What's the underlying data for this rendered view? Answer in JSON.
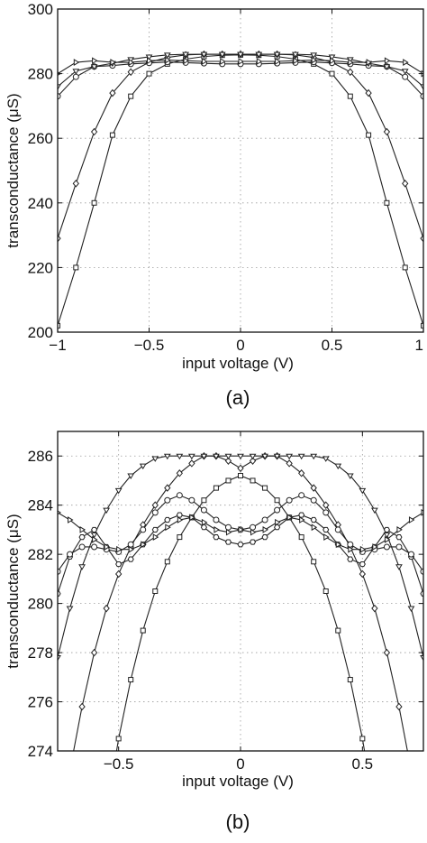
{
  "chart_data": [
    {
      "type": "line",
      "panel_label": "(a)",
      "xlabel": "input voltage (V)",
      "ylabel": "transconductance (μS)",
      "xlim": [
        -1,
        1
      ],
      "ylim": [
        200,
        300
      ],
      "xticks": [
        -1,
        -0.5,
        0,
        0.5,
        1
      ],
      "xtick_labels": [
        "−1",
        "−0.5",
        "0",
        "0.5",
        "1"
      ],
      "yticks": [
        200,
        220,
        240,
        260,
        280,
        300
      ],
      "ytick_labels": [
        "200",
        "220",
        "240",
        "260",
        "280",
        "300"
      ],
      "grid": true,
      "series": [
        {
          "marker": "square",
          "x": [
            -1.0,
            -0.9,
            -0.8,
            -0.7,
            -0.6,
            -0.5,
            -0.4,
            -0.3,
            -0.2,
            -0.1,
            0.0,
            0.1,
            0.2,
            0.3,
            0.4,
            0.5,
            0.6,
            0.7,
            0.8,
            0.9,
            1.0
          ],
          "values": [
            202,
            220,
            240,
            261,
            273,
            280,
            283,
            284.5,
            285.3,
            285.7,
            285.8,
            285.7,
            285.3,
            284.5,
            283,
            280,
            273,
            261,
            240,
            220,
            202
          ]
        },
        {
          "marker": "diamond",
          "x": [
            -1.0,
            -0.9,
            -0.8,
            -0.7,
            -0.6,
            -0.5,
            -0.4,
            -0.3,
            -0.2,
            -0.1,
            0.0,
            0.1,
            0.2,
            0.3,
            0.4,
            0.5,
            0.6,
            0.7,
            0.8,
            0.9,
            1.0
          ],
          "values": [
            229,
            246,
            262,
            274,
            280.5,
            283.5,
            285,
            285.8,
            286,
            286,
            286,
            286,
            286,
            285.8,
            285,
            283.5,
            280.5,
            274,
            262,
            246,
            229
          ]
        },
        {
          "marker": "circle",
          "x": [
            -1.0,
            -0.9,
            -0.8,
            -0.7,
            -0.6,
            -0.5,
            -0.4,
            -0.3,
            -0.2,
            -0.1,
            0.0,
            0.1,
            0.2,
            0.3,
            0.4,
            0.5,
            0.6,
            0.7,
            0.8,
            0.9,
            1.0
          ],
          "values": [
            273,
            279,
            282.2,
            282.5,
            283,
            283.3,
            283.6,
            283.4,
            283.2,
            283,
            283,
            283,
            283.2,
            283.4,
            283.6,
            283.3,
            283,
            282.5,
            282.2,
            279,
            273
          ]
        },
        {
          "marker": "triangle-down",
          "x": [
            -1.0,
            -0.9,
            -0.8,
            -0.7,
            -0.6,
            -0.5,
            -0.4,
            -0.3,
            -0.2,
            -0.1,
            0.0,
            0.1,
            0.2,
            0.3,
            0.4,
            0.5,
            0.6,
            0.7,
            0.8,
            0.9,
            1.0
          ],
          "values": [
            276,
            280.8,
            282.2,
            283.2,
            284.4,
            285.2,
            285.8,
            286,
            286,
            286,
            286,
            286,
            286,
            286,
            285.8,
            285.2,
            284.4,
            283.2,
            282.2,
            280.8,
            276
          ]
        },
        {
          "marker": "triangle-right",
          "x": [
            -1.0,
            -0.9,
            -0.8,
            -0.7,
            -0.6,
            -0.5,
            -0.4,
            -0.3,
            -0.2,
            -0.1,
            0.0,
            0.1,
            0.2,
            0.3,
            0.4,
            0.5,
            0.6,
            0.7,
            0.8,
            0.9,
            1.0
          ],
          "values": [
            280,
            283.5,
            284,
            283.5,
            283.5,
            284,
            284.2,
            284,
            283.8,
            283.8,
            283.8,
            283.8,
            283.8,
            284,
            284.2,
            284,
            283.5,
            283.5,
            284,
            283.5,
            280
          ]
        }
      ]
    },
    {
      "type": "line",
      "panel_label": "(b)",
      "xlabel": "input voltage (V)",
      "ylabel": "transconductance (μS)",
      "xlim": [
        -0.75,
        0.75
      ],
      "ylim": [
        274,
        287
      ],
      "xticks": [
        -0.5,
        0,
        0.5
      ],
      "xtick_labels": [
        "−0.5",
        "0",
        "0.5"
      ],
      "yticks": [
        274,
        276,
        278,
        280,
        282,
        284,
        286
      ],
      "ytick_labels": [
        "274",
        "276",
        "278",
        "280",
        "282",
        "284",
        "286"
      ],
      "grid": true,
      "series": [
        {
          "marker": "square",
          "x": [
            -0.55,
            -0.5,
            -0.45,
            -0.4,
            -0.35,
            -0.3,
            -0.25,
            -0.2,
            -0.15,
            -0.1,
            -0.05,
            0.0,
            0.05,
            0.1,
            0.15,
            0.2,
            0.25,
            0.3,
            0.35,
            0.4,
            0.45,
            0.5,
            0.55
          ],
          "values": [
            271.5,
            274.5,
            276.9,
            278.9,
            280.5,
            281.7,
            282.7,
            283.5,
            284.2,
            284.7,
            285.0,
            285.2,
            285.0,
            284.7,
            284.2,
            283.5,
            282.7,
            281.7,
            280.5,
            278.9,
            276.9,
            274.5,
            271.5
          ]
        },
        {
          "marker": "diamond",
          "x": [
            -0.75,
            -0.7,
            -0.65,
            -0.6,
            -0.55,
            -0.5,
            -0.45,
            -0.4,
            -0.35,
            -0.3,
            -0.25,
            -0.2,
            -0.15,
            -0.1,
            -0.05,
            0.0,
            0.05,
            0.1,
            0.15,
            0.2,
            0.25,
            0.3,
            0.35,
            0.4,
            0.45,
            0.5,
            0.55,
            0.6,
            0.65,
            0.7,
            0.75
          ],
          "values": [
            270.5,
            273.2,
            275.8,
            278.0,
            279.8,
            281.2,
            282.3,
            283.2,
            284.0,
            284.7,
            285.3,
            285.7,
            286.0,
            286.0,
            285.8,
            285.5,
            285.8,
            286.0,
            286.0,
            285.7,
            285.3,
            284.7,
            284.0,
            283.2,
            282.3,
            281.2,
            279.8,
            278.0,
            275.8,
            273.2,
            270.5
          ]
        },
        {
          "marker": "triangle-down",
          "x": [
            -0.75,
            -0.7,
            -0.65,
            -0.6,
            -0.55,
            -0.5,
            -0.45,
            -0.4,
            -0.35,
            -0.3,
            -0.25,
            -0.2,
            -0.15,
            -0.1,
            -0.05,
            0.0,
            0.05,
            0.1,
            0.15,
            0.2,
            0.25,
            0.3,
            0.35,
            0.4,
            0.45,
            0.5,
            0.55,
            0.6,
            0.65,
            0.7,
            0.75
          ],
          "values": [
            277.8,
            279.8,
            281.5,
            282.8,
            283.8,
            284.6,
            285.2,
            285.6,
            285.9,
            286.0,
            286.0,
            286.0,
            286.0,
            286.0,
            286.0,
            286.0,
            286.0,
            286.0,
            286.0,
            286.0,
            286.0,
            286.0,
            285.9,
            285.6,
            285.2,
            284.6,
            283.8,
            282.8,
            281.5,
            279.8,
            277.8
          ]
        },
        {
          "marker": "hexagon",
          "x": [
            -0.75,
            -0.7,
            -0.65,
            -0.6,
            -0.55,
            -0.5,
            -0.45,
            -0.4,
            -0.35,
            -0.3,
            -0.25,
            -0.2,
            -0.15,
            -0.1,
            -0.05,
            0.0,
            0.05,
            0.1,
            0.15,
            0.2,
            0.25,
            0.3,
            0.35,
            0.4,
            0.45,
            0.5,
            0.55,
            0.6,
            0.65,
            0.7,
            0.75
          ],
          "values": [
            280.4,
            281.9,
            282.7,
            283.0,
            282.3,
            281.6,
            281.8,
            282.4,
            283.0,
            283.4,
            283.6,
            283.5,
            283.1,
            282.7,
            282.5,
            282.4,
            282.5,
            282.7,
            283.1,
            283.5,
            283.6,
            283.4,
            283.0,
            282.4,
            281.8,
            281.6,
            282.3,
            283.0,
            282.7,
            281.9,
            280.4
          ]
        },
        {
          "marker": "circle",
          "x": [
            -0.75,
            -0.7,
            -0.65,
            -0.6,
            -0.55,
            -0.5,
            -0.45,
            -0.4,
            -0.35,
            -0.3,
            -0.25,
            -0.2,
            -0.15,
            -0.1,
            -0.05,
            0.0,
            0.05,
            0.1,
            0.15,
            0.2,
            0.25,
            0.3,
            0.35,
            0.4,
            0.45,
            0.5,
            0.55,
            0.6,
            0.65,
            0.7,
            0.75
          ],
          "values": [
            281.3,
            282.0,
            282.3,
            282.3,
            282.2,
            282.1,
            282.4,
            283.0,
            283.7,
            284.2,
            284.4,
            284.2,
            283.8,
            283.4,
            283.1,
            283.0,
            283.1,
            283.4,
            283.8,
            284.2,
            284.4,
            284.2,
            283.7,
            283.0,
            282.4,
            282.1,
            282.2,
            282.3,
            282.3,
            282.0,
            281.3
          ]
        },
        {
          "marker": "triangle-right",
          "x": [
            -0.75,
            -0.7,
            -0.65,
            -0.6,
            -0.55,
            -0.5,
            -0.45,
            -0.4,
            -0.35,
            -0.3,
            -0.25,
            -0.2,
            -0.15,
            -0.1,
            -0.05,
            0.0,
            0.05,
            0.1,
            0.15,
            0.2,
            0.25,
            0.3,
            0.35,
            0.4,
            0.45,
            0.5,
            0.55,
            0.6,
            0.65,
            0.7,
            0.75
          ],
          "values": [
            283.7,
            283.4,
            283.0,
            282.6,
            282.3,
            282.2,
            282.2,
            282.4,
            282.7,
            283.1,
            283.4,
            283.5,
            283.3,
            283.0,
            282.9,
            283.0,
            282.9,
            283.0,
            283.3,
            283.5,
            283.4,
            283.1,
            282.7,
            282.4,
            282.2,
            282.2,
            282.3,
            282.6,
            283.0,
            283.4,
            283.7
          ]
        }
      ]
    }
  ]
}
